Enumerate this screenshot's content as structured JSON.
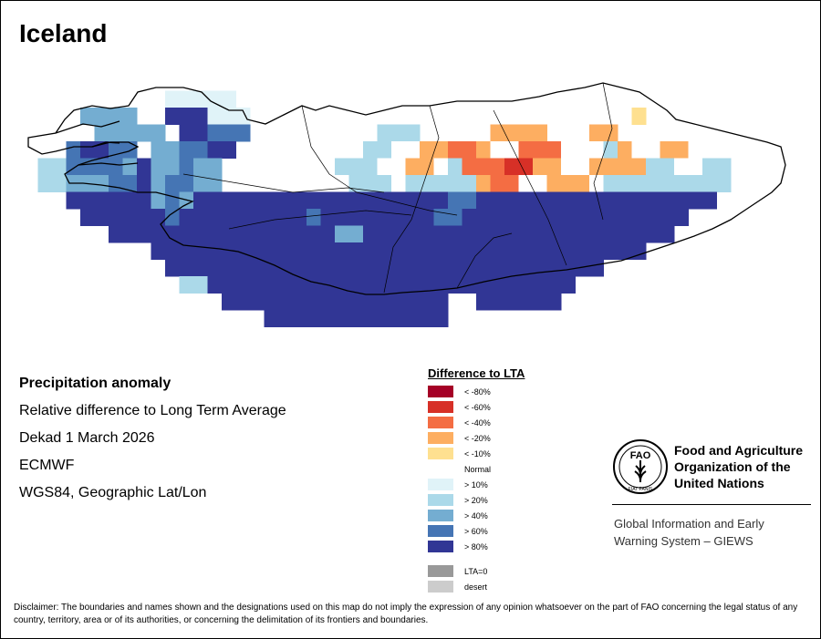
{
  "title": "Iceland",
  "info": {
    "heading": "Precipitation anomaly",
    "line1": "Relative difference to Long Term Average",
    "line2": "Dekad 1 March 2026",
    "line3": "ECMWF",
    "line4": "WGS84, Geographic Lat/Lon"
  },
  "legend": {
    "title": "Difference to LTA",
    "items": [
      {
        "label": "< -80%",
        "color": "#a50026"
      },
      {
        "label": "< -60%",
        "color": "#d73027"
      },
      {
        "label": "< -40%",
        "color": "#f46d43"
      },
      {
        "label": "< -20%",
        "color": "#fdae61"
      },
      {
        "label": "< -10%",
        "color": "#fee090"
      },
      {
        "label": "Normal",
        "color": "#ffffff"
      },
      {
        "label": "> 10%",
        "color": "#e0f3f8"
      },
      {
        "label": "> 20%",
        "color": "#abd9e9"
      },
      {
        "label": "> 40%",
        "color": "#74add1"
      },
      {
        "label": "> 60%",
        "color": "#4575b4"
      },
      {
        "label": "> 80%",
        "color": "#313695"
      }
    ],
    "extra": [
      {
        "label": "LTA=0",
        "color": "#999999"
      },
      {
        "label": "desert",
        "color": "#cccccc"
      }
    ]
  },
  "fao": {
    "name_line1": "Food and Agriculture",
    "name_line2": "Organization of the",
    "name_line3": "United Nations",
    "logo_text": "FAO",
    "logo_motto": "FIAT PANIS",
    "giews_line1": "Global Information and Early",
    "giews_line2": "Warning System – GIEWS"
  },
  "disclaimer": "Disclaimer: The boundaries and names shown and the designations used on this map do not imply the expression of any opinion whatsoever on the part of FAO concerning the legal status of any country, territory, area or of its authorities, or concerning the delimitation of its frontiers and boundaries.",
  "map": {
    "colors": {
      "n80": "#a50026",
      "n60": "#d73027",
      "n40": "#f46d43",
      "n20": "#fdae61",
      "n10": "#fee090",
      "nm": "#ffffff",
      "p10": "#e0f3f8",
      "p20": "#abd9e9",
      "p40": "#74add1",
      "p60": "#4575b4",
      "p80": "#313695"
    },
    "grid_rows": [
      "..........................................................",
      "..........ggggg.........................................",
      "....bbbb..dddeee...........................n...........",
      ".....bbbbb.ddccc.........aaa.....yyyy...yy....ww..........",
      "...cddcc.bbccdd.........aawwyyooywwooowwwaywwyyw.........",
      ".aaccccbdbbcbb........aaawwyywaooorryywwyyyyaawwaa.........",
      ".aabbbccdbccbb........waaawaaaaayoowwyyywaaaaaaaaa.........",
      "...ddddddbcbddddddddddddddddddccddddddddddddddddd.........",
      "....ddddddcdddddddddcddddddddccdddddddddddddddd...........",
      "......ddddddddddddddddbbdddddddddddddddddddddd............",
      ".........ddddddddddddddddddddddddddddddddddd..............",
      "..........ddddddddddddddddddddddddddddddd.................",
      "...........aadddddddddddddddddddddddddd...................",
      "..............dddddddddddddddd..dddddd....................",
      ".................ddddddddddddd............................"
    ]
  }
}
